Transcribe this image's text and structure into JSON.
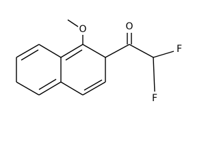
{
  "atoms": {
    "methoxy_oxygen": "O",
    "carbonyl_oxygen": "O",
    "fluorine_upper": "F",
    "fluorine_lower": "F"
  }
}
